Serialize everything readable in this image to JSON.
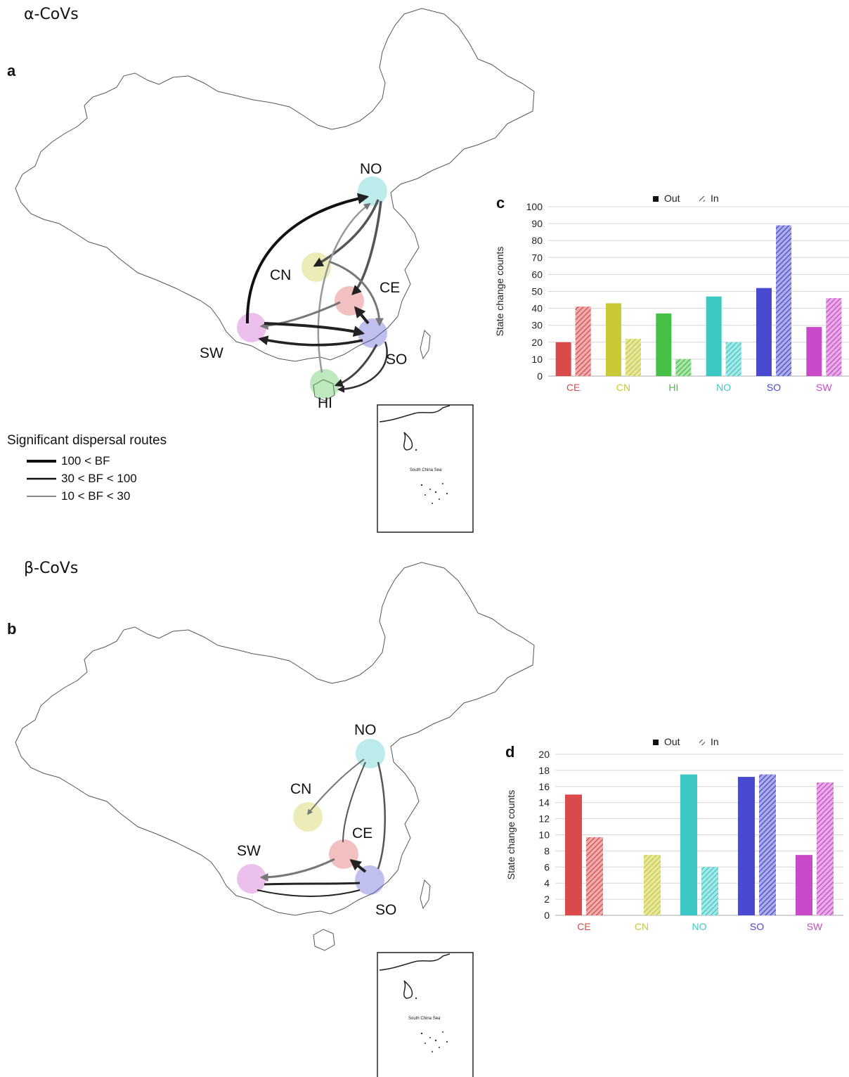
{
  "panels": {
    "alpha": {
      "section_title": "α-CoVs",
      "map_letter": "a",
      "chart_letter": "c",
      "region_labels": {
        "NO": "NO",
        "CN": "CN",
        "CE": "CE",
        "SW": "SW",
        "SO": "SO",
        "HI": "HI"
      },
      "inset_label": "South China Sea"
    },
    "beta": {
      "section_title": "β-CoVs",
      "map_letter": "b",
      "chart_letter": "d",
      "region_labels": {
        "NO": "NO",
        "CN": "CN",
        "CE": "CE",
        "SW": "SW",
        "SO": "SO"
      },
      "inset_label": "South China Sea"
    }
  },
  "legend": {
    "title": "Significant dispersal routes",
    "items": [
      "100 < BF",
      "30 < BF < 100",
      "10 < BF < 30"
    ]
  },
  "region_colors": {
    "CE": "#d94b4b",
    "CN": "#c9c936",
    "HI": "#44c144",
    "NO": "#3cc9c6",
    "SO": "#4a4ad0",
    "SW": "#c94ac9"
  },
  "chart_data": [
    {
      "type": "bar",
      "panel": "c",
      "categories": [
        "CE",
        "CN",
        "HI",
        "NO",
        "SO",
        "SW"
      ],
      "series": [
        {
          "name": "Out",
          "values": [
            20,
            43,
            37,
            47,
            52,
            29
          ]
        },
        {
          "name": "In",
          "values": [
            41,
            22,
            10,
            20,
            89,
            46
          ]
        }
      ],
      "ylabel": "State change counts",
      "ylim": [
        0,
        100
      ],
      "yticks": [
        0,
        10,
        20,
        30,
        40,
        50,
        60,
        70,
        80,
        90,
        100
      ],
      "legend_position": "top",
      "grid": true
    },
    {
      "type": "bar",
      "panel": "d",
      "categories": [
        "CE",
        "CN",
        "NO",
        "SO",
        "SW"
      ],
      "series": [
        {
          "name": "Out",
          "values": [
            15,
            0,
            17.5,
            17.2,
            7.5
          ]
        },
        {
          "name": "In",
          "values": [
            9.7,
            7.5,
            6,
            17.5,
            16.5
          ]
        }
      ],
      "ylabel": "State change counts",
      "ylim": [
        0,
        20
      ],
      "yticks": [
        0,
        2,
        4,
        6,
        8,
        10,
        12,
        14,
        16,
        18,
        20
      ],
      "legend_position": "top",
      "grid": true
    }
  ]
}
